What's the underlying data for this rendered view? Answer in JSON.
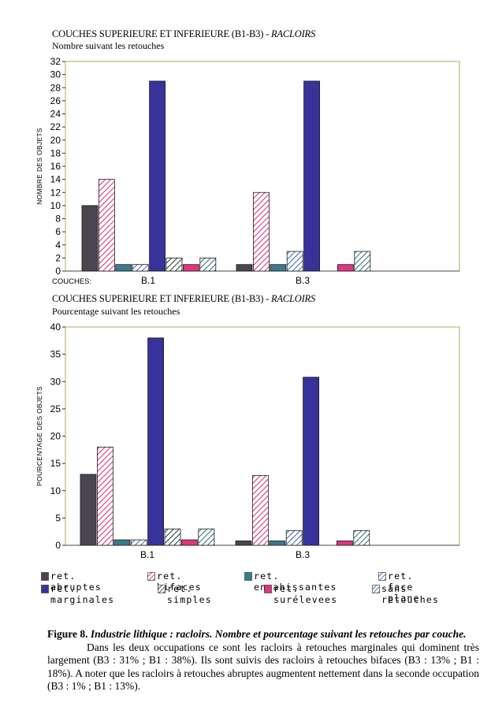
{
  "chart_data": [
    {
      "type": "bar",
      "title": "COUCHES SUPERIEURE ET INFERIEURE (B1-B3) - ",
      "title_italic": "RACLOIRS",
      "subtitle": "Nombre suivant les retouches",
      "ylabel": "NOMBRE DES OBJETS",
      "xlabel_prefix": "COUCHES:",
      "categories": [
        "B.1",
        "B.3"
      ],
      "ylim": [
        0,
        32
      ],
      "yticks": [
        0,
        2,
        4,
        6,
        8,
        10,
        12,
        14,
        16,
        18,
        20,
        22,
        24,
        26,
        28,
        30,
        32
      ],
      "series": [
        {
          "name": "ret. abruptes",
          "values": [
            10,
            1
          ]
        },
        {
          "name": "ret. bifaces",
          "values": [
            14,
            12
          ]
        },
        {
          "name": "ret. envahissantes",
          "values": [
            1,
            1
          ]
        },
        {
          "name": "ret. face plane",
          "values": [
            1,
            3
          ]
        },
        {
          "name": "ret. marginales",
          "values": [
            29,
            29
          ]
        },
        {
          "name": "ret. simples",
          "values": [
            2,
            0
          ]
        },
        {
          "name": "ret. surélevees",
          "values": [
            1,
            1
          ]
        },
        {
          "name": "sans retouches",
          "values": [
            2,
            3
          ]
        }
      ]
    },
    {
      "type": "bar",
      "title": "COUCHES SUPERIEURE ET INFERIEURE (B1-B3) - ",
      "title_italic": "RACLOIRS",
      "subtitle": "Pourcentage suivant les retouches",
      "ylabel": "POURCENTAGE DES OBJETS",
      "categories": [
        "B.1",
        "B.3"
      ],
      "ylim": [
        0,
        40
      ],
      "yticks": [
        0,
        5,
        10,
        15,
        20,
        25,
        30,
        35,
        40
      ],
      "series": [
        {
          "name": "ret. abruptes",
          "values": [
            13,
            0.8
          ]
        },
        {
          "name": "ret. bifaces",
          "values": [
            18,
            12.8
          ]
        },
        {
          "name": "ret. envahissantes",
          "values": [
            1,
            0.8
          ]
        },
        {
          "name": "ret. face plane",
          "values": [
            1,
            2.7
          ]
        },
        {
          "name": "ret. marginales",
          "values": [
            38,
            30.8
          ]
        },
        {
          "name": "ret. simples",
          "values": [
            3,
            0
          ]
        },
        {
          "name": "ret. surélevees",
          "values": [
            1,
            0.8
          ]
        },
        {
          "name": "sans retouches",
          "values": [
            3,
            2.7
          ]
        }
      ]
    }
  ],
  "legend": [
    {
      "label": "ret. abruptes",
      "style": "solid",
      "color": "#4a4550"
    },
    {
      "label": "ret. bifaces",
      "style": "hatch",
      "color": "#d8287a"
    },
    {
      "label": "ret. envahissantes",
      "style": "solid",
      "color": "#3a7b8c"
    },
    {
      "label": "ret. face plane",
      "style": "hatch",
      "color": "#3a63b8"
    },
    {
      "label": "ret. marginales",
      "style": "solid",
      "color": "#38339a"
    },
    {
      "label": "ret. simples",
      "style": "hatch",
      "color": "#1f3a3a"
    },
    {
      "label": "ret. surélevees",
      "style": "solid",
      "color": "#e0357e"
    },
    {
      "label": "sans retouches",
      "style": "hatch",
      "color": "#2f6e7a"
    }
  ],
  "caption": {
    "figure_label": "Figure 8.",
    "figure_title": "Industrie lithique : racloirs. Nombre et pourcentage suivant les retouches par couche.",
    "body": "Dans les deux occupations ce sont les racloirs à retouches marginales qui dominent très largement (B3 : 31% ; B1 : 38%). Ils sont suivis des racloirs à retouches bifaces (B3 : 13% ; B1 : 18%). A noter que les racloirs à retouches abruptes augmentent nettement dans la seconde occupation (B3 : 1% ; B1 : 13%)."
  }
}
